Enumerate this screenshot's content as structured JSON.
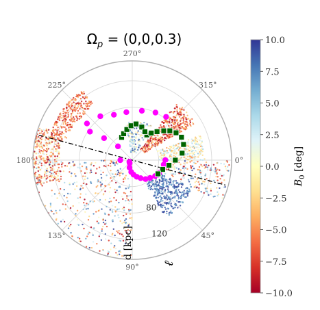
{
  "chart_data": {
    "type": "scatter",
    "projection": "polar",
    "title_main": "Ω",
    "title_sub": "p",
    "title_rest": " = (0,0,0.3)",
    "angle_ticks": [
      {
        "deg": 0,
        "label": "0°"
      },
      {
        "deg": 45,
        "label": "45°"
      },
      {
        "deg": 90,
        "label": "90°"
      },
      {
        "deg": 135,
        "label": "135°"
      },
      {
        "deg": 180,
        "label": "180°"
      },
      {
        "deg": 225,
        "label": "225°"
      },
      {
        "deg": 270,
        "label": "270°"
      },
      {
        "deg": 315,
        "label": "315°"
      }
    ],
    "radial_ticks": [
      {
        "r": 40,
        "label": ""
      },
      {
        "r": 80,
        "label": "80"
      },
      {
        "r": 120,
        "label": "120"
      }
    ],
    "rmax": 150,
    "radial_axis_label": "d [kpc]",
    "radial_axis_glyph": "ℓ",
    "grid": true,
    "colorbar": {
      "label_main": "B",
      "label_sub": "0",
      "label_rest": " [deg]",
      "min": -10.0,
      "max": 10.0,
      "colormap": "RdYlBu",
      "stops": [
        "#a50026",
        "#d73027",
        "#f46d43",
        "#fdae61",
        "#fee090",
        "#ffffbf",
        "#e0f3f8",
        "#abd9e9",
        "#74add1",
        "#4575b4",
        "#313695"
      ],
      "ticks": [
        {
          "value": 10.0,
          "label": "10.0"
        },
        {
          "value": 7.5,
          "label": "7.5"
        },
        {
          "value": 5.0,
          "label": "5.0"
        },
        {
          "value": 2.5,
          "label": "2.5"
        },
        {
          "value": 0.0,
          "label": "0.0"
        },
        {
          "value": -2.5,
          "label": "−2.5"
        },
        {
          "value": -5.0,
          "label": "−5.0"
        },
        {
          "value": -7.5,
          "label": "−7.5"
        },
        {
          "value": -10.0,
          "label": "−10.0"
        }
      ]
    },
    "line": {
      "name": "orbital plane",
      "style": "dash-dot",
      "color": "#000000",
      "points": [
        [
          195,
          146
        ],
        [
          15,
          146
        ]
      ]
    },
    "series": [
      {
        "name": "magenta circles",
        "marker": "circle",
        "color": "#ff00ff",
        "points": [
          [
            219,
            88
          ],
          [
            234,
            82
          ],
          [
            248,
            74
          ],
          [
            263,
            73
          ],
          [
            281,
            76
          ],
          [
            296,
            80
          ],
          [
            308,
            83
          ],
          [
            214,
            77
          ],
          [
            218,
            54
          ],
          [
            224,
            30
          ],
          [
            180,
            18
          ],
          [
            150,
            5
          ],
          [
            130,
            6
          ],
          [
            110,
            12
          ],
          [
            95,
            18
          ],
          [
            85,
            22
          ],
          [
            75,
            26
          ],
          [
            65,
            30
          ],
          [
            55,
            35
          ],
          [
            45,
            38
          ],
          [
            35,
            42
          ],
          [
            25,
            45
          ],
          [
            15,
            48
          ],
          [
            8,
            48
          ],
          [
            0,
            50
          ]
        ]
      },
      {
        "name": "green squares",
        "marker": "square",
        "color": "#006400",
        "points": [
          [
            300,
            44
          ],
          [
            305,
            50
          ],
          [
            311,
            57
          ],
          [
            317,
            65
          ],
          [
            322,
            72
          ],
          [
            328,
            78
          ],
          [
            335,
            82
          ],
          [
            343,
            81
          ],
          [
            352,
            76
          ],
          [
            0,
            65
          ],
          [
            8,
            56
          ],
          [
            17,
            48
          ],
          [
            28,
            44
          ],
          [
            245,
            38
          ],
          [
            252,
            42
          ],
          [
            260,
            47
          ],
          [
            268,
            52
          ],
          [
            276,
            55
          ],
          [
            286,
            52
          ],
          [
            294,
            47
          ]
        ]
      }
    ],
    "point_clouds": [
      {
        "name": "cloud-1",
        "deg_range": [
          308,
          330
        ],
        "r_range": [
          20,
          110
        ],
        "b0_range": [
          -10,
          -2
        ],
        "count": 400
      },
      {
        "name": "cloud-2",
        "deg_range": [
          165,
          200
        ],
        "r_range": [
          110,
          150
        ],
        "b0_range": [
          -10,
          3
        ],
        "count": 380
      },
      {
        "name": "cloud-3",
        "deg_range": [
          195,
          235
        ],
        "r_range": [
          100,
          130
        ],
        "b0_range": [
          -9,
          -3
        ],
        "count": 260
      },
      {
        "name": "cloud-4",
        "deg_range": [
          25,
          60
        ],
        "r_range": [
          40,
          100
        ],
        "b0_range": [
          6,
          10
        ],
        "count": 320
      },
      {
        "name": "cloud-5",
        "deg_range": [
          340,
          360
        ],
        "r_range": [
          40,
          110
        ],
        "b0_range": [
          -5,
          5
        ],
        "count": 260
      },
      {
        "name": "cloud-6",
        "deg_range": [
          90,
          180
        ],
        "r_range": [
          20,
          150
        ],
        "b0_range": [
          -10,
          10
        ],
        "count": 420
      },
      {
        "name": "cloud-7",
        "deg_range": [
          0,
          25
        ],
        "r_range": [
          50,
          150
        ],
        "b0_range": [
          -10,
          10
        ],
        "count": 180
      },
      {
        "name": "cloud-8",
        "deg_range": [
          260,
          300
        ],
        "r_range": [
          10,
          60
        ],
        "b0_range": [
          -3,
          10
        ],
        "count": 160
      }
    ]
  }
}
